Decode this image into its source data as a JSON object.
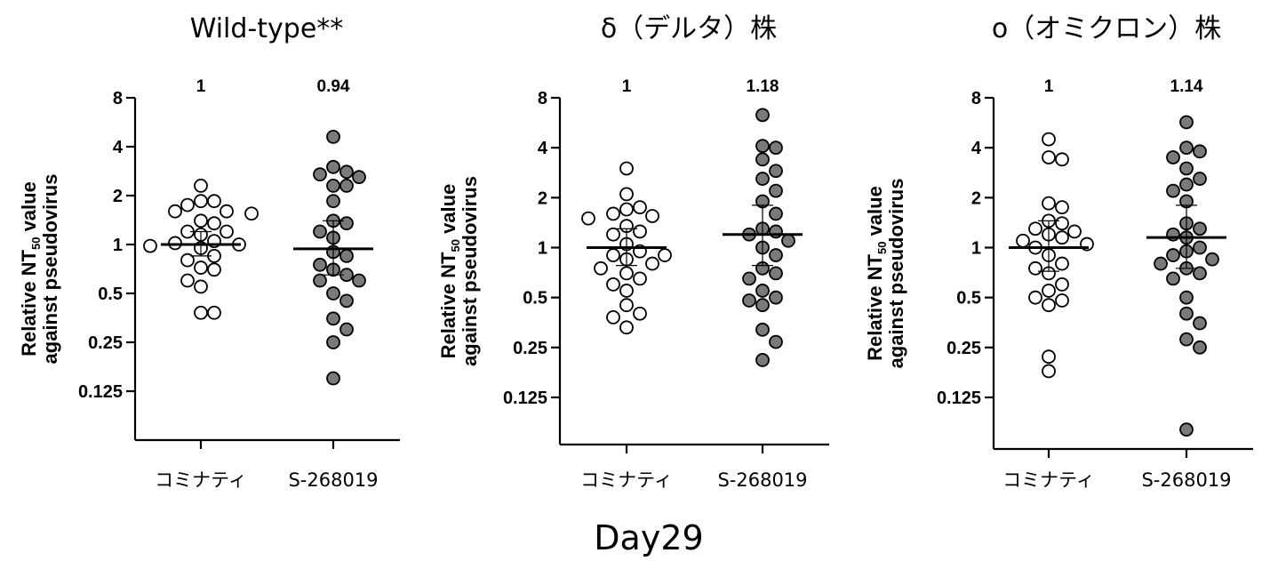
{
  "figure": {
    "footer_label": "Day29",
    "colors": {
      "open_fill": "#ffffff",
      "filled_fill": "#7a7a7a",
      "stroke": "#000000"
    }
  },
  "chart_data": [
    {
      "type": "scatter",
      "title": "Wild-type**",
      "ylabel_line1": "Relative NT",
      "ylabel_sub": "50",
      "ylabel_line1_suffix": " value",
      "ylabel_line2": "against pseudovirus",
      "y_scale": "log2",
      "ylim": [
        0.07,
        8
      ],
      "y_ticks": [
        {
          "value": 8,
          "label": "8"
        },
        {
          "value": 4,
          "label": "4"
        },
        {
          "value": 2,
          "label": "2"
        },
        {
          "value": 1,
          "label": "1"
        },
        {
          "value": 0.5,
          "label": "0.5"
        },
        {
          "value": 0.25,
          "label": "0.25"
        },
        {
          "value": 0.125,
          "label": "0.125"
        }
      ],
      "groups": [
        {
          "label": "コミナティ",
          "ratio_label": "1",
          "fill": "open",
          "mean": 1.0,
          "ci": [
            0.85,
            1.2
          ],
          "points": [
            2.3,
            1.85,
            1.85,
            1.75,
            1.6,
            1.6,
            1.55,
            1.4,
            1.35,
            1.2,
            1.2,
            1.15,
            1.05,
            1.02,
            1.0,
            0.98,
            0.95,
            0.85,
            0.8,
            0.72,
            0.7,
            0.6,
            0.55,
            0.38,
            0.38
          ]
        },
        {
          "label": "S-268019",
          "ratio_label": "0.94",
          "fill": "filled",
          "mean": 0.94,
          "ci": [
            0.65,
            1.4
          ],
          "points": [
            4.6,
            3.0,
            2.8,
            2.7,
            2.6,
            2.3,
            2.3,
            1.85,
            1.4,
            1.35,
            1.2,
            1.1,
            0.9,
            0.85,
            0.75,
            0.7,
            0.65,
            0.6,
            0.6,
            0.5,
            0.45,
            0.35,
            0.3,
            0.25,
            0.15
          ]
        }
      ]
    },
    {
      "type": "scatter",
      "title": "δ（デルタ）株",
      "ylabel_line1": "Relative NT",
      "ylabel_sub": "50",
      "ylabel_line1_suffix": " value",
      "ylabel_line2": "against pseudovirus",
      "y_scale": "log2",
      "ylim": [
        0.07,
        8
      ],
      "y_ticks": [
        {
          "value": 8,
          "label": "8"
        },
        {
          "value": 4,
          "label": "4"
        },
        {
          "value": 2,
          "label": "2"
        },
        {
          "value": 1,
          "label": "1"
        },
        {
          "value": 0.5,
          "label": "0.5"
        },
        {
          "value": 0.25,
          "label": "0.25"
        },
        {
          "value": 0.125,
          "label": "0.125"
        }
      ],
      "groups": [
        {
          "label": "コミナティ",
          "ratio_label": "1",
          "fill": "open",
          "mean": 1.0,
          "ci": [
            0.78,
            1.3
          ],
          "points": [
            3.0,
            2.1,
            1.75,
            1.7,
            1.6,
            1.55,
            1.5,
            1.35,
            1.25,
            1.2,
            1.05,
            0.95,
            0.9,
            0.9,
            0.85,
            0.8,
            0.75,
            0.7,
            0.65,
            0.6,
            0.55,
            0.45,
            0.4,
            0.38,
            0.33
          ]
        },
        {
          "label": "S-268019",
          "ratio_label": "1.18",
          "fill": "filled",
          "mean": 1.2,
          "ci": [
            0.78,
            1.8
          ],
          "points": [
            6.3,
            4.1,
            4.0,
            3.4,
            2.9,
            2.6,
            2.2,
            1.9,
            1.6,
            1.3,
            1.25,
            1.2,
            1.1,
            1.0,
            0.9,
            0.75,
            0.7,
            0.65,
            0.55,
            0.5,
            0.48,
            0.45,
            0.32,
            0.27,
            0.21
          ]
        }
      ]
    },
    {
      "type": "scatter",
      "title": "o（オミクロン）株",
      "ylabel_line1": "Relative NT",
      "ylabel_sub": "50",
      "ylabel_line1_suffix": " value",
      "ylabel_line2": "against pseudovirus",
      "y_scale": "log2",
      "ylim": [
        0.07,
        8
      ],
      "y_ticks": [
        {
          "value": 8,
          "label": "8"
        },
        {
          "value": 4,
          "label": "4"
        },
        {
          "value": 2,
          "label": "2"
        },
        {
          "value": 1,
          "label": "1"
        },
        {
          "value": 0.5,
          "label": "0.5"
        },
        {
          "value": 0.25,
          "label": "0.25"
        },
        {
          "value": 0.125,
          "label": "0.125"
        }
      ],
      "groups": [
        {
          "label": "コミナティ",
          "ratio_label": "1",
          "fill": "open",
          "mean": 1.0,
          "ci": [
            0.72,
            1.45
          ],
          "points": [
            4.5,
            3.5,
            3.4,
            1.85,
            1.75,
            1.45,
            1.4,
            1.3,
            1.25,
            1.2,
            1.15,
            1.1,
            1.05,
            1.0,
            0.9,
            0.8,
            0.75,
            0.7,
            0.6,
            0.55,
            0.5,
            0.48,
            0.45,
            0.22,
            0.18
          ]
        },
        {
          "label": "S-268019",
          "ratio_label": "1.14",
          "fill": "filled",
          "mean": 1.15,
          "ci": [
            0.75,
            1.8
          ],
          "points": [
            5.7,
            4.0,
            3.8,
            3.5,
            3.0,
            2.6,
            2.4,
            2.2,
            1.9,
            1.4,
            1.3,
            1.2,
            1.15,
            1.0,
            0.95,
            0.9,
            0.85,
            0.8,
            0.75,
            0.7,
            0.65,
            0.5,
            0.4,
            0.35,
            0.28,
            0.25,
            0.08
          ]
        }
      ]
    }
  ]
}
